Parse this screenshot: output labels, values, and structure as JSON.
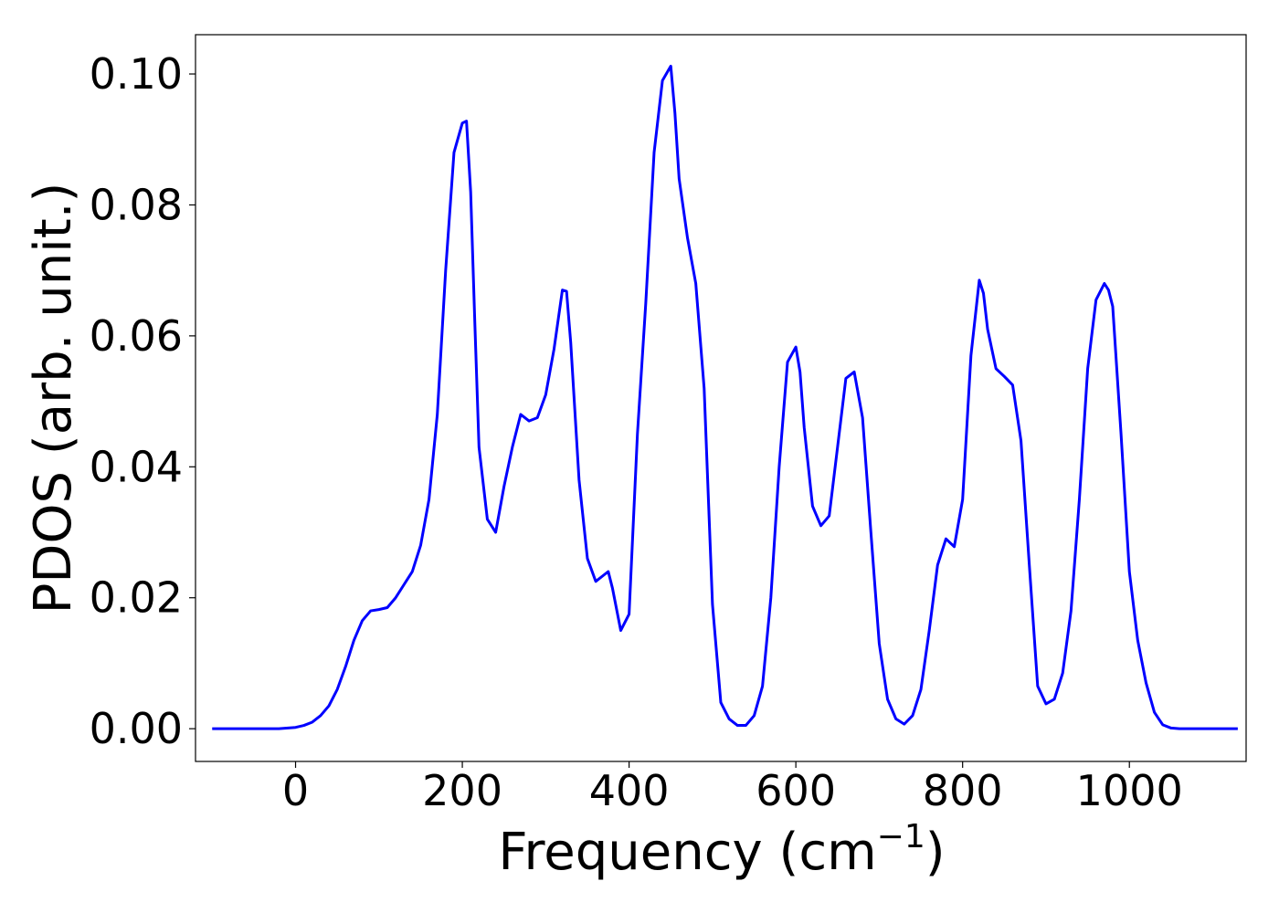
{
  "chart_data": {
    "type": "line",
    "title": "",
    "xlabel": "Frequency (cm",
    "xlabel_sup": "−1",
    "xlabel_close": ")",
    "ylabel": "PDOS (arb. unit.)",
    "xlim": [
      -120,
      1140
    ],
    "ylim": [
      -0.005,
      0.106
    ],
    "xticks": [
      0,
      200,
      400,
      600,
      800,
      1000
    ],
    "xtick_labels": [
      "0",
      "200",
      "400",
      "600",
      "800",
      "1000"
    ],
    "yticks": [
      0.0,
      0.02,
      0.04,
      0.06,
      0.08,
      0.1
    ],
    "ytick_labels": [
      "0.00",
      "0.02",
      "0.04",
      "0.06",
      "0.08",
      "0.10"
    ],
    "grid": false,
    "legend": "none",
    "series": [
      {
        "color": "#0000ff",
        "x": [
          -100,
          -50,
          -20,
          0,
          10,
          20,
          30,
          40,
          50,
          60,
          70,
          80,
          90,
          100,
          110,
          120,
          130,
          140,
          150,
          160,
          170,
          180,
          190,
          200,
          205,
          210,
          215,
          220,
          230,
          240,
          250,
          260,
          270,
          280,
          290,
          300,
          310,
          320,
          325,
          330,
          340,
          350,
          360,
          370,
          375,
          380,
          390,
          400,
          410,
          420,
          430,
          440,
          450,
          455,
          460,
          470,
          480,
          490,
          500,
          510,
          520,
          530,
          540,
          550,
          560,
          570,
          580,
          590,
          600,
          605,
          610,
          620,
          630,
          640,
          650,
          660,
          670,
          680,
          690,
          700,
          710,
          720,
          730,
          740,
          750,
          760,
          770,
          780,
          790,
          800,
          810,
          820,
          825,
          830,
          840,
          850,
          860,
          870,
          880,
          890,
          900,
          910,
          920,
          930,
          940,
          950,
          960,
          970,
          975,
          980,
          990,
          1000,
          1010,
          1020,
          1030,
          1040,
          1050,
          1060,
          1080,
          1100,
          1130
        ],
        "y": [
          0.0,
          0.0,
          0.0,
          0.0002,
          0.0005,
          0.001,
          0.002,
          0.0035,
          0.006,
          0.0095,
          0.0135,
          0.0165,
          0.018,
          0.0182,
          0.0185,
          0.02,
          0.022,
          0.024,
          0.028,
          0.035,
          0.048,
          0.07,
          0.088,
          0.0925,
          0.0928,
          0.082,
          0.062,
          0.043,
          0.032,
          0.03,
          0.037,
          0.043,
          0.048,
          0.047,
          0.0475,
          0.051,
          0.058,
          0.067,
          0.0668,
          0.059,
          0.038,
          0.026,
          0.0225,
          0.0235,
          0.024,
          0.0215,
          0.015,
          0.0175,
          0.045,
          0.065,
          0.088,
          0.099,
          0.1012,
          0.094,
          0.084,
          0.075,
          0.068,
          0.052,
          0.019,
          0.004,
          0.0015,
          0.0005,
          0.0005,
          0.002,
          0.0065,
          0.02,
          0.04,
          0.056,
          0.0583,
          0.0545,
          0.046,
          0.034,
          0.031,
          0.0325,
          0.043,
          0.0535,
          0.0545,
          0.0475,
          0.03,
          0.013,
          0.0045,
          0.0015,
          0.0007,
          0.002,
          0.006,
          0.015,
          0.025,
          0.029,
          0.0278,
          0.035,
          0.057,
          0.0685,
          0.0665,
          0.061,
          0.055,
          0.0538,
          0.0525,
          0.044,
          0.025,
          0.0065,
          0.0038,
          0.0045,
          0.0085,
          0.018,
          0.035,
          0.055,
          0.0655,
          0.068,
          0.067,
          0.0645,
          0.045,
          0.024,
          0.0135,
          0.007,
          0.0025,
          0.0006,
          0.0001,
          0.0,
          0.0,
          0.0,
          0.0
        ]
      }
    ]
  }
}
